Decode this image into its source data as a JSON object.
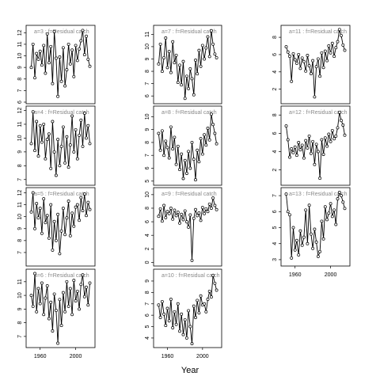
{
  "figure": {
    "xlabel": "Year",
    "panel_label_sep": " : ",
    "panel_label_series": "f=Residual catch"
  },
  "chart_data": [
    {
      "type": "line",
      "panel": "a=3",
      "title": "a=3 : f=Residual catch",
      "ylim": [
        6,
        12.5
      ],
      "yticks": [
        6,
        7,
        8,
        9,
        10,
        11,
        12
      ],
      "show_xticks": false,
      "x": [
        1950,
        1952,
        1954,
        1956,
        1958,
        1960,
        1962,
        1964,
        1966,
        1968,
        1970,
        1972,
        1974,
        1976,
        1978,
        1980,
        1982,
        1984,
        1986,
        1988,
        1990,
        1992,
        1994,
        1996,
        1998,
        2000,
        2002,
        2004,
        2006,
        2008,
        2010,
        2012,
        2014,
        2016
      ],
      "y": [
        9.0,
        11.0,
        8.1,
        10.2,
        9.7,
        10.4,
        9.2,
        10.9,
        8.5,
        11.9,
        9.4,
        10.8,
        7.6,
        12.1,
        9.8,
        6.5,
        9.9,
        7.8,
        10.7,
        7.4,
        8.8,
        11.0,
        9.3,
        10.5,
        8.2,
        10.9,
        9.6,
        10.6,
        11.3,
        12.2,
        10.1,
        11.7,
        9.7,
        9.1
      ]
    },
    {
      "type": "line",
      "panel": "a=4",
      "title": "a=4 : f=Residual catch",
      "ylim": [
        6.7,
        12.2
      ],
      "yticks": [
        7,
        8,
        9,
        10,
        11,
        12
      ],
      "show_xticks": false,
      "x": [
        1950,
        1952,
        1954,
        1956,
        1958,
        1960,
        1962,
        1964,
        1966,
        1968,
        1970,
        1972,
        1974,
        1976,
        1978,
        1980,
        1982,
        1984,
        1986,
        1988,
        1990,
        1992,
        1994,
        1996,
        1998,
        2000,
        2002,
        2004,
        2006,
        2008,
        2010,
        2012,
        2014,
        2016
      ],
      "y": [
        9.6,
        11.9,
        9.1,
        11.2,
        8.7,
        10.9,
        9.7,
        11.0,
        8.5,
        9.9,
        10.3,
        7.8,
        11.2,
        9.0,
        7.3,
        9.9,
        8.0,
        9.4,
        10.8,
        8.2,
        10.1,
        7.9,
        9.5,
        11.6,
        9.0,
        10.6,
        8.5,
        10.2,
        11.3,
        9.4,
        11.8,
        10.0,
        10.9,
        9.6
      ]
    },
    {
      "type": "line",
      "panel": "a=5",
      "title": "a=5 : f=Residual catch",
      "ylim": [
        6,
        12.3
      ],
      "yticks": [
        7,
        8,
        9,
        10,
        11,
        12
      ],
      "show_xticks": false,
      "x": [
        1950,
        1952,
        1954,
        1956,
        1958,
        1960,
        1962,
        1964,
        1966,
        1968,
        1970,
        1972,
        1974,
        1976,
        1978,
        1980,
        1982,
        1984,
        1986,
        1988,
        1990,
        1992,
        1994,
        1996,
        1998,
        2000,
        2002,
        2004,
        2006,
        2008,
        2010,
        2012,
        2014,
        2016
      ],
      "y": [
        10.4,
        12.0,
        9.0,
        11.1,
        9.9,
        10.7,
        8.6,
        11.5,
        9.5,
        10.1,
        8.2,
        11.0,
        7.2,
        9.6,
        8.0,
        10.2,
        6.9,
        8.8,
        10.7,
        8.5,
        9.9,
        11.3,
        8.4,
        10.3,
        9.2,
        10.8,
        11.0,
        9.7,
        11.6,
        10.5,
        11.9,
        10.1,
        11.2,
        10.6
      ]
    },
    {
      "type": "line",
      "panel": "a=6",
      "title": "a=6 : f=Residual catch",
      "ylim": [
        6.3,
        11.8
      ],
      "yticks": [
        7,
        8,
        9,
        10,
        11
      ],
      "show_xticks": true,
      "xticks": [
        1960,
        2000
      ],
      "xlim": [
        1946,
        2020
      ],
      "x": [
        1950,
        1952,
        1954,
        1956,
        1958,
        1960,
        1962,
        1964,
        1966,
        1968,
        1970,
        1972,
        1974,
        1976,
        1978,
        1980,
        1982,
        1984,
        1986,
        1988,
        1990,
        1992,
        1994,
        1996,
        1998,
        2000,
        2002,
        2004,
        2006,
        2008,
        2010,
        2012,
        2014,
        2016
      ],
      "y": [
        10.0,
        9.2,
        11.6,
        8.8,
        10.5,
        9.4,
        10.9,
        8.6,
        9.8,
        10.7,
        8.3,
        9.5,
        7.4,
        10.1,
        8.9,
        6.5,
        9.7,
        7.8,
        10.2,
        8.8,
        11.0,
        9.2,
        10.5,
        8.6,
        11.1,
        9.6,
        10.3,
        9.0,
        10.8,
        11.5,
        9.9,
        10.6,
        9.3,
        10.9
      ]
    },
    {
      "type": "line",
      "panel": "a=7",
      "title": "a=7 : f=Residual catch",
      "ylim": [
        5.5,
        11.6
      ],
      "yticks": [
        6,
        7,
        8,
        9,
        10,
        11
      ],
      "show_xticks": false,
      "x": [
        1950,
        1952,
        1954,
        1956,
        1958,
        1960,
        1962,
        1964,
        1966,
        1968,
        1970,
        1972,
        1974,
        1976,
        1978,
        1980,
        1982,
        1984,
        1986,
        1988,
        1990,
        1992,
        1994,
        1996,
        1998,
        2000,
        2002,
        2004,
        2006,
        2008,
        2010,
        2012,
        2014,
        2016
      ],
      "y": [
        8.6,
        10.2,
        8.0,
        9.1,
        10.7,
        8.3,
        9.6,
        7.9,
        10.4,
        8.7,
        9.3,
        7.1,
        8.5,
        6.9,
        8.8,
        5.8,
        7.6,
        6.6,
        8.2,
        7.4,
        6.1,
        8.9,
        7.8,
        9.7,
        8.4,
        10.1,
        9.0,
        9.9,
        10.8,
        9.2,
        11.3,
        10.2,
        9.4,
        9.1
      ]
    },
    {
      "type": "line",
      "panel": "a=8",
      "title": "a=8 : f=Residual catch",
      "ylim": [
        4.8,
        10.7
      ],
      "yticks": [
        5,
        6,
        7,
        8,
        9,
        10
      ],
      "show_xticks": false,
      "x": [
        1950,
        1952,
        1954,
        1956,
        1958,
        1960,
        1962,
        1964,
        1966,
        1968,
        1970,
        1972,
        1974,
        1976,
        1978,
        1980,
        1982,
        1984,
        1986,
        1988,
        1990,
        1992,
        1994,
        1996,
        1998,
        2000,
        2002,
        2004,
        2006,
        2008,
        2010,
        2012,
        2014,
        2016
      ],
      "y": [
        8.7,
        7.4,
        8.9,
        7.0,
        8.1,
        7.6,
        6.8,
        9.2,
        7.5,
        8.4,
        6.3,
        7.7,
        5.9,
        7.1,
        5.2,
        6.6,
        5.6,
        7.3,
        6.0,
        8.0,
        6.7,
        5.1,
        7.4,
        6.5,
        8.3,
        7.1,
        8.6,
        7.8,
        9.1,
        8.2,
        10.2,
        9.4,
        8.7,
        7.9
      ]
    },
    {
      "type": "line",
      "panel": "a=9",
      "title": "a=9 : f=Residual catch",
      "ylim": [
        -0.3,
        10.8
      ],
      "yticks": [
        0,
        2,
        4,
        6,
        8,
        10
      ],
      "show_xticks": false,
      "x": [
        1950,
        1952,
        1954,
        1956,
        1958,
        1960,
        1962,
        1964,
        1966,
        1968,
        1970,
        1972,
        1974,
        1976,
        1978,
        1980,
        1982,
        1984,
        1986,
        1988,
        1990,
        1992,
        1994,
        1996,
        1998,
        2000,
        2002,
        2004,
        2006,
        2008,
        2010,
        2012,
        2014,
        2016
      ],
      "y": [
        6.8,
        7.9,
        6.1,
        8.4,
        6.6,
        7.5,
        7.2,
        8.0,
        6.4,
        7.7,
        6.9,
        7.4,
        5.8,
        7.1,
        6.3,
        7.6,
        6.0,
        5.2,
        7.0,
        0.3,
        6.5,
        7.8,
        6.9,
        7.3,
        6.2,
        8.1,
        7.2,
        7.9,
        7.5,
        8.6,
        8.0,
        9.5,
        8.4,
        7.8
      ]
    },
    {
      "type": "line",
      "panel": "a=10",
      "title": "a=10 : f=Residual catch",
      "ylim": [
        3.3,
        9.9
      ],
      "yticks": [
        4,
        5,
        6,
        7,
        8,
        9
      ],
      "show_xticks": true,
      "xticks": [
        1960,
        2000
      ],
      "xlim": [
        1946,
        2020
      ],
      "x": [
        1950,
        1952,
        1954,
        1956,
        1958,
        1960,
        1962,
        1964,
        1966,
        1968,
        1970,
        1972,
        1974,
        1976,
        1978,
        1980,
        1982,
        1984,
        1986,
        1988,
        1990,
        1992,
        1994,
        1996,
        1998,
        2000,
        2002,
        2004,
        2006,
        2008,
        2010,
        2012,
        2014,
        2016
      ],
      "y": [
        6.9,
        5.8,
        7.2,
        6.1,
        5.1,
        6.6,
        5.5,
        7.4,
        4.9,
        6.3,
        5.2,
        7.0,
        4.6,
        6.1,
        4.3,
        5.6,
        4.0,
        6.4,
        5.0,
        3.5,
        6.8,
        5.8,
        7.3,
        6.2,
        7.7,
        6.9,
        7.0,
        6.3,
        7.4,
        8.1,
        7.6,
        9.5,
        8.8,
        8.2
      ]
    },
    {
      "type": "line",
      "panel": "a=11",
      "title": "a=11 : f=Residual catch",
      "ylim": [
        0.5,
        9.2
      ],
      "yticks": [
        2,
        4,
        6,
        8
      ],
      "show_xticks": false,
      "x": [
        1950,
        1952,
        1954,
        1956,
        1958,
        1960,
        1962,
        1964,
        1966,
        1968,
        1970,
        1972,
        1974,
        1976,
        1978,
        1980,
        1982,
        1984,
        1986,
        1988,
        1990,
        1992,
        1994,
        1996,
        1998,
        2000,
        2002,
        2004,
        2006,
        2008,
        2010,
        2012,
        2014,
        2016
      ],
      "y": [
        6.9,
        6.3,
        5.8,
        2.9,
        6.1,
        5.4,
        5.0,
        6.0,
        4.4,
        5.6,
        5.2,
        4.1,
        5.9,
        4.7,
        3.8,
        5.3,
        1.1,
        4.6,
        5.5,
        3.5,
        6.2,
        4.5,
        6.4,
        5.3,
        7.0,
        6.2,
        7.3,
        5.8,
        6.8,
        7.5,
        8.9,
        8.2,
        7.1,
        6.5
      ]
    },
    {
      "type": "line",
      "panel": "a=12",
      "title": "a=12 : f=Residual catch",
      "ylim": [
        0.5,
        8.8
      ],
      "yticks": [
        2,
        4,
        6,
        8
      ],
      "show_xticks": false,
      "x": [
        1950,
        1952,
        1954,
        1956,
        1958,
        1960,
        1962,
        1964,
        1966,
        1968,
        1970,
        1972,
        1974,
        1976,
        1978,
        1980,
        1982,
        1984,
        1986,
        1988,
        1990,
        1992,
        1994,
        1996,
        1998,
        2000,
        2002,
        2004,
        2006,
        2008,
        2010,
        2012,
        2014,
        2016
      ],
      "y": [
        6.8,
        5.3,
        3.4,
        4.3,
        3.9,
        4.5,
        3.6,
        5.0,
        4.2,
        4.7,
        3.3,
        5.2,
        4.4,
        5.7,
        3.8,
        5.1,
        2.6,
        4.8,
        4.0,
        1.1,
        5.3,
        3.7,
        5.5,
        4.6,
        5.9,
        5.1,
        6.3,
        5.4,
        5.7,
        6.6,
        8.3,
        7.4,
        6.9,
        5.8
      ]
    },
    {
      "type": "line",
      "panel": "a=13",
      "title": "a=13 : f=Residual catch",
      "ylim": [
        2.7,
        7.4
      ],
      "yticks": [
        3,
        4,
        5,
        6,
        7
      ],
      "show_xticks": true,
      "xticks": [
        1960,
        2000
      ],
      "xlim": [
        1946,
        2020
      ],
      "x": [
        1950,
        1952,
        1954,
        1956,
        1958,
        1960,
        1962,
        1964,
        1966,
        1968,
        1970,
        1972,
        1974,
        1976,
        1978,
        1980,
        1982,
        1984,
        1986,
        1988,
        1990,
        1992,
        1994,
        1996,
        1998,
        2000,
        2002,
        2004,
        2006,
        2008,
        2010,
        2012,
        2014,
        2016
      ],
      "y": [
        7.1,
        6.0,
        5.8,
        3.1,
        5.0,
        3.6,
        4.2,
        3.3,
        4.8,
        3.9,
        4.4,
        6.1,
        4.0,
        6.4,
        4.6,
        3.7,
        4.9,
        4.1,
        3.2,
        3.5,
        5.4,
        4.3,
        6.3,
        5.5,
        5.9,
        6.5,
        5.7,
        6.1,
        5.2,
        6.8,
        7.2,
        7.0,
        6.6,
        6.2
      ]
    }
  ]
}
